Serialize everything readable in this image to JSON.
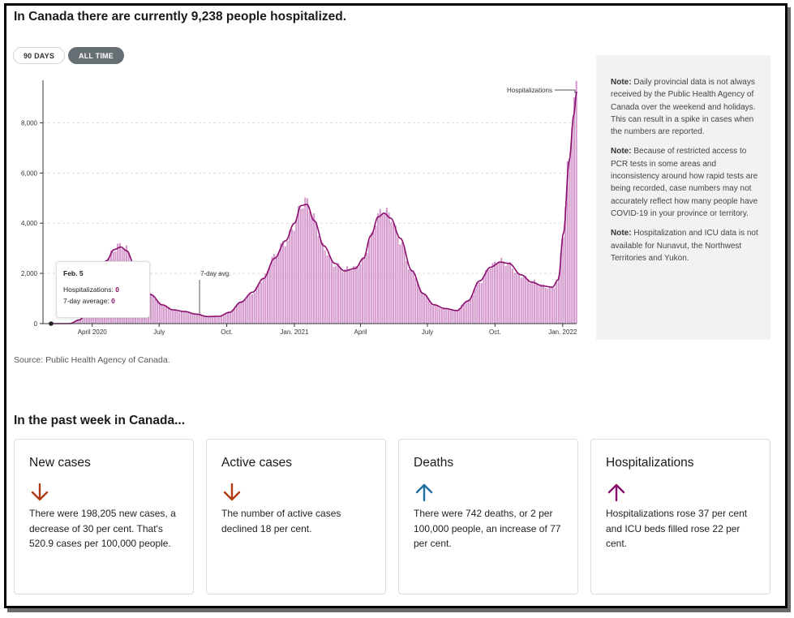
{
  "headline": "In Canada there are currently 9,238 people hospitalized.",
  "toggles": {
    "days90": "90 DAYS",
    "alltime": "ALL TIME"
  },
  "colors": {
    "bar": "#d59ccd",
    "line": "#8b0e6e",
    "down_arrow": "#b03a12",
    "up_arrow_deaths": "#1e6fa0",
    "up_arrow_hosp": "#8b0e6e"
  },
  "chart_data": {
    "type": "bar",
    "series_label": "Hospitalizations",
    "avg_label": "7-day avg.",
    "ylim": [
      0,
      9500
    ],
    "yticks": [
      0,
      2000,
      4000,
      6000,
      8000
    ],
    "ytick_labels": [
      "0",
      "2,000",
      "4,000",
      "6,000",
      "8,000"
    ],
    "xlim": [
      "2020-01-25",
      "2022-01-20"
    ],
    "xticks": [
      {
        "date": "2020-04-01",
        "label": "April 2020"
      },
      {
        "date": "2020-07-01",
        "label": "July"
      },
      {
        "date": "2020-10-01",
        "label": "Oct."
      },
      {
        "date": "2021-01-01",
        "label": "Jan. 2021"
      },
      {
        "date": "2021-04-01",
        "label": "April"
      },
      {
        "date": "2021-07-01",
        "label": "July"
      },
      {
        "date": "2021-10-01",
        "label": "Oct."
      },
      {
        "date": "2022-01-01",
        "label": "Jan. 2022"
      }
    ],
    "avg_label_date": "2020-08-25",
    "trend_points": [
      [
        "2020-02-05",
        0
      ],
      [
        "2020-03-01",
        0
      ],
      [
        "2020-03-15",
        150
      ],
      [
        "2020-03-28",
        800
      ],
      [
        "2020-04-10",
        1800
      ],
      [
        "2020-04-20",
        2500
      ],
      [
        "2020-05-01",
        2950
      ],
      [
        "2020-05-10",
        3050
      ],
      [
        "2020-05-18",
        2900
      ],
      [
        "2020-05-28",
        2350
      ],
      [
        "2020-06-08",
        1700
      ],
      [
        "2020-06-20",
        1150
      ],
      [
        "2020-07-05",
        750
      ],
      [
        "2020-07-20",
        550
      ],
      [
        "2020-08-05",
        480
      ],
      [
        "2020-08-20",
        380
      ],
      [
        "2020-09-05",
        280
      ],
      [
        "2020-09-20",
        290
      ],
      [
        "2020-10-05",
        450
      ],
      [
        "2020-10-20",
        850
      ],
      [
        "2020-11-05",
        1250
      ],
      [
        "2020-11-20",
        1800
      ],
      [
        "2020-12-05",
        2600
      ],
      [
        "2020-12-20",
        3300
      ],
      [
        "2021-01-01",
        4000
      ],
      [
        "2021-01-10",
        4700
      ],
      [
        "2021-01-18",
        4750
      ],
      [
        "2021-01-28",
        4100
      ],
      [
        "2021-02-10",
        3100
      ],
      [
        "2021-02-25",
        2400
      ],
      [
        "2021-03-10",
        2100
      ],
      [
        "2021-03-25",
        2200
      ],
      [
        "2021-04-05",
        2600
      ],
      [
        "2021-04-15",
        3500
      ],
      [
        "2021-04-25",
        4250
      ],
      [
        "2021-05-03",
        4400
      ],
      [
        "2021-05-12",
        4200
      ],
      [
        "2021-05-25",
        3400
      ],
      [
        "2021-06-10",
        2100
      ],
      [
        "2021-06-25",
        1200
      ],
      [
        "2021-07-10",
        750
      ],
      [
        "2021-07-25",
        600
      ],
      [
        "2021-08-10",
        520
      ],
      [
        "2021-08-25",
        900
      ],
      [
        "2021-09-10",
        1700
      ],
      [
        "2021-09-25",
        2250
      ],
      [
        "2021-10-08",
        2450
      ],
      [
        "2021-10-20",
        2400
      ],
      [
        "2021-11-05",
        1950
      ],
      [
        "2021-11-20",
        1650
      ],
      [
        "2021-12-05",
        1500
      ],
      [
        "2021-12-18",
        1450
      ],
      [
        "2021-12-26",
        1750
      ],
      [
        "2022-01-02",
        3600
      ],
      [
        "2022-01-10",
        6500
      ],
      [
        "2022-01-16",
        8300
      ],
      [
        "2022-01-20",
        9238
      ]
    ]
  },
  "tooltip": {
    "date": "Feb. 5",
    "hosp_label": "Hospitalizations:",
    "hosp_value": "0",
    "avg_label": "7-day average:",
    "avg_value": "0"
  },
  "notes": [
    {
      "label": "Note:",
      "text": "Daily provincial data is not always received by the Public Health Agency of Canada over the weekend and holidays. This can result in a spike in cases when the numbers are reported."
    },
    {
      "label": "Note:",
      "text": "Because of restricted access to PCR tests in some areas and inconsistency around how rapid tests are being recorded, case numbers may not accurately reflect how many people have COVID-19 in your province or territory."
    },
    {
      "label": "Note:",
      "text": "Hospitalization and ICU data is not available for Nunavut, the Northwest Territories and Yukon."
    }
  ],
  "source": "Source: Public Health Agency of Canada.",
  "week_title": "In the past week in Canada...",
  "cards": [
    {
      "title": "New cases",
      "direction": "down",
      "icon": "arrow-down-icon",
      "text": "There were 198,205 new cases, a decrease of 30 per cent. That's 520.9 cases per 100,000 people."
    },
    {
      "title": "Active cases",
      "direction": "down",
      "icon": "arrow-down-icon",
      "text": "The number of active cases declined 18 per cent."
    },
    {
      "title": "Deaths",
      "direction": "up",
      "icon": "arrow-up-icon",
      "text": "There were 742 deaths, or 2 per 100,000 people, an increase of 77 per cent."
    },
    {
      "title": "Hospitalizations",
      "direction": "up",
      "icon": "arrow-up-icon",
      "text": "Hospitalizations rose 37 per cent and ICU beds filled rose 22 per cent."
    }
  ]
}
